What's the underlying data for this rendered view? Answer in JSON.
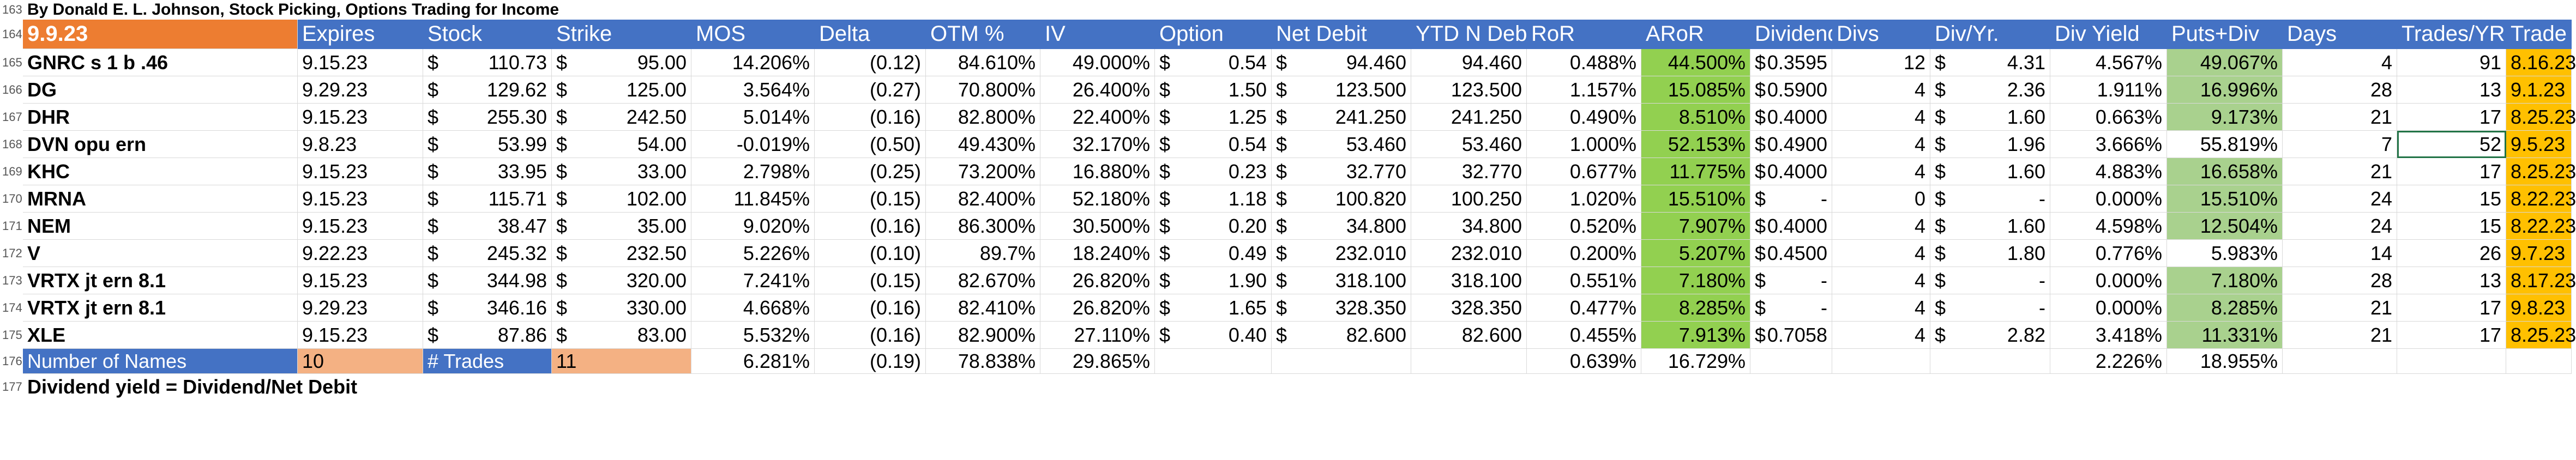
{
  "title_row": {
    "row_num": "163",
    "text": "By Donald E. L. Johnson, Stock Picking, Options Trading for Income"
  },
  "header": {
    "row_num": "164",
    "date": "9.9.23",
    "cols": [
      "Expires",
      "Stock",
      "Strike",
      "MOS",
      "Delta",
      "OTM %",
      "IV",
      "Option",
      "Net Debit",
      "YTD N Debit",
      "RoR",
      "ARoR",
      "Dividend",
      "Divs",
      "Div/Yr.",
      "Div Yield",
      "Puts+Div",
      "Days",
      "Trades/YR",
      "Trade"
    ]
  },
  "currency_symbol": "$",
  "rows": [
    {
      "num": "165",
      "name": "GNRC  s 1 b .46",
      "expires": "9.15.23",
      "stock": "110.73",
      "strike": "95.00",
      "mos": "14.206%",
      "delta": "(0.12)",
      "otm": "84.610%",
      "iv": "49.000%",
      "option": "0.54",
      "net_debit": "94.460",
      "ytd": "94.460",
      "ror": "0.488%",
      "aror": "44.500%",
      "dividend": "0.3595",
      "divs": "12",
      "divyr": "4.31",
      "yield": "4.567%",
      "puts": "49.067%",
      "days": "4",
      "tpy": "91",
      "trade": "8.16.23"
    },
    {
      "num": "166",
      "name": "DG",
      "expires": "9.29.23",
      "stock": "129.62",
      "strike": "125.00",
      "mos": "3.564%",
      "delta": "(0.27)",
      "otm": "70.800%",
      "iv": "26.400%",
      "option": "1.50",
      "net_debit": "123.500",
      "ytd": "123.500",
      "ror": "1.157%",
      "aror": "15.085%",
      "dividend": "0.5900",
      "divs": "4",
      "divyr": "2.36",
      "yield": "1.911%",
      "puts": "16.996%",
      "days": "28",
      "tpy": "13",
      "trade": "9.1.23"
    },
    {
      "num": "167",
      "name": "DHR",
      "expires": "9.15.23",
      "stock": "255.30",
      "strike": "242.50",
      "mos": "5.014%",
      "delta": "(0.16)",
      "otm": "82.800%",
      "iv": "22.400%",
      "option": "1.25",
      "net_debit": "241.250",
      "ytd": "241.250",
      "ror": "0.490%",
      "aror": "8.510%",
      "dividend": "0.4000",
      "divs": "4",
      "divyr": "1.60",
      "yield": "0.663%",
      "puts": "9.173%",
      "days": "21",
      "tpy": "17",
      "trade": "8.25.23"
    },
    {
      "num": "168",
      "name": "DVN opu ern",
      "expires": "9.8.23",
      "stock": "53.99",
      "strike": "54.00",
      "mos": "-0.019%",
      "delta": "(0.50)",
      "otm": "49.430%",
      "iv": "32.170%",
      "option": "0.54",
      "net_debit": "53.460",
      "ytd": "53.460",
      "ror": "1.000%",
      "aror": "52.153%",
      "dividend": "0.4900",
      "divs": "4",
      "divyr": "1.96",
      "yield": "3.666%",
      "puts": "55.819%",
      "days": "7",
      "tpy": "52",
      "trade": "9.5.23"
    },
    {
      "num": "169",
      "name": "KHC",
      "expires": "9.15.23",
      "stock": "33.95",
      "strike": "33.00",
      "mos": "2.798%",
      "delta": "(0.25)",
      "otm": "73.200%",
      "iv": "16.880%",
      "option": "0.23",
      "net_debit": "32.770",
      "ytd": "32.770",
      "ror": "0.677%",
      "aror": "11.775%",
      "dividend": "0.4000",
      "divs": "4",
      "divyr": "1.60",
      "yield": "4.883%",
      "puts": "16.658%",
      "days": "21",
      "tpy": "17",
      "trade": "8.25.23"
    },
    {
      "num": "170",
      "name": "MRNA",
      "expires": "9.15.23",
      "stock": "115.71",
      "strike": "102.00",
      "mos": "11.845%",
      "delta": "(0.15)",
      "otm": "82.400%",
      "iv": "52.180%",
      "option": "1.18",
      "net_debit": "100.820",
      "ytd": "100.250",
      "ror": "1.020%",
      "aror": "15.510%",
      "dividend": "-",
      "divs": "0",
      "divyr": "-",
      "yield": "0.000%",
      "puts": "15.510%",
      "days": "24",
      "tpy": "15",
      "trade": "8.22.23"
    },
    {
      "num": "171",
      "name": "NEM",
      "expires": "9.15.23",
      "stock": "38.47",
      "strike": "35.00",
      "mos": "9.020%",
      "delta": "(0.16)",
      "otm": "86.300%",
      "iv": "30.500%",
      "option": "0.20",
      "net_debit": "34.800",
      "ytd": "34.800",
      "ror": "0.520%",
      "aror": "7.907%",
      "dividend": "0.4000",
      "divs": "4",
      "divyr": "1.60",
      "yield": "4.598%",
      "puts": "12.504%",
      "days": "24",
      "tpy": "15",
      "trade": "8.22.23"
    },
    {
      "num": "172",
      "name": "V",
      "expires": "9.22.23",
      "stock": "245.32",
      "strike": "232.50",
      "mos": "5.226%",
      "delta": "(0.10)",
      "otm": "89.7%",
      "iv": "18.240%",
      "option": "0.49",
      "net_debit": "232.010",
      "ytd": "232.010",
      "ror": "0.200%",
      "aror": "5.207%",
      "dividend": "0.4500",
      "divs": "4",
      "divyr": "1.80",
      "yield": "0.776%",
      "puts": "5.983%",
      "days": "14",
      "tpy": "26",
      "trade": "9.7.23"
    },
    {
      "num": "173",
      "name": "VRTX jt ern 8.1",
      "expires": "9.15.23",
      "stock": "344.98",
      "strike": "320.00",
      "mos": "7.241%",
      "delta": "(0.15)",
      "otm": "82.670%",
      "iv": "26.820%",
      "option": "1.90",
      "net_debit": "318.100",
      "ytd": "318.100",
      "ror": "0.551%",
      "aror": "7.180%",
      "dividend": "-",
      "divs": "4",
      "divyr": "-",
      "yield": "0.000%",
      "puts": "7.180%",
      "days": "28",
      "tpy": "13",
      "trade": "8.17.23"
    },
    {
      "num": "174",
      "name": "VRTX jt ern 8.1",
      "expires": "9.29.23",
      "stock": "346.16",
      "strike": "330.00",
      "mos": "4.668%",
      "delta": "(0.16)",
      "otm": "82.410%",
      "iv": "26.820%",
      "option": "1.65",
      "net_debit": "328.350",
      "ytd": "328.350",
      "ror": "0.477%",
      "aror": "8.285%",
      "dividend": "-",
      "divs": "4",
      "divyr": "-",
      "yield": "0.000%",
      "puts": "8.285%",
      "days": "21",
      "tpy": "17",
      "trade": "9.8.23"
    },
    {
      "num": "175",
      "name": "XLE",
      "expires": "9.15.23",
      "stock": "87.86",
      "strike": "83.00",
      "mos": "5.532%",
      "delta": "(0.16)",
      "otm": "82.900%",
      "iv": "27.110%",
      "option": "0.40",
      "net_debit": "82.600",
      "ytd": "82.600",
      "ror": "0.455%",
      "aror": "7.913%",
      "dividend": "0.7058",
      "divs": "4",
      "divyr": "2.82",
      "yield": "3.418%",
      "puts": "11.331%",
      "days": "21",
      "tpy": "17",
      "trade": "8.25.23"
    }
  ],
  "summary": {
    "num": "176",
    "names_label": "Number of Names",
    "names_value": "10",
    "trades_label": "# Trades",
    "trades_value": "11",
    "mos": "6.281%",
    "delta": "(0.19)",
    "otm": "78.838%",
    "iv": "29.865%",
    "ror": "0.639%",
    "aror": "16.729%",
    "yield": "2.226%",
    "puts": "18.955%"
  },
  "footer": {
    "num": "177",
    "text": "Dividend yield = Dividend/Net Debit"
  },
  "colors": {
    "header_blue": "#4472c4",
    "date_orange": "#ed7d31",
    "aror_green": "#92d050",
    "puts_green": "#a9d18e",
    "trade_orange": "#ffc000",
    "summary_peach": "#f4b183"
  }
}
